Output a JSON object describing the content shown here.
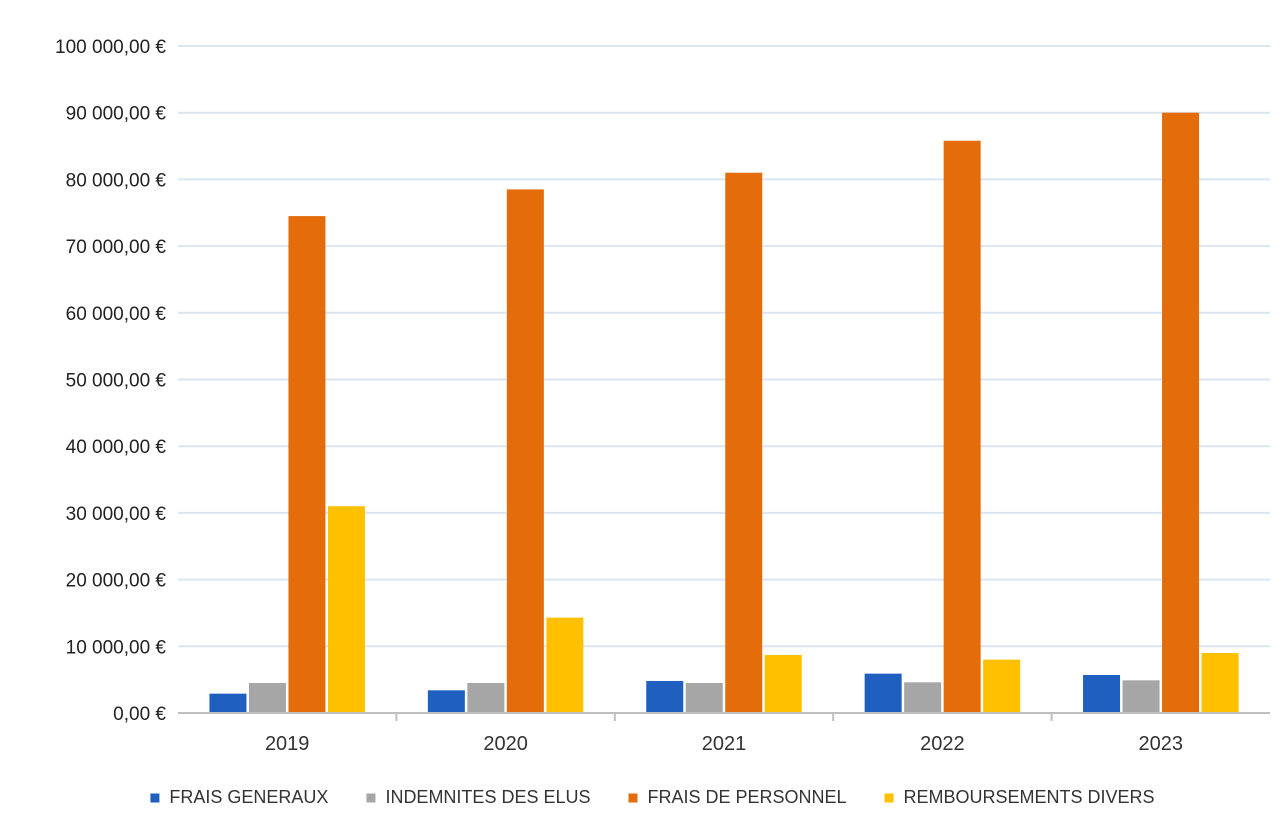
{
  "chart_data": {
    "type": "bar",
    "categories": [
      "2019",
      "2020",
      "2021",
      "2022",
      "2023"
    ],
    "series": [
      {
        "name": "FRAIS GENERAUX",
        "color": "#1f5fbf",
        "values": [
          2900,
          3400,
          4800,
          5900,
          5700
        ]
      },
      {
        "name": "INDEMNITES DES ELUS",
        "color": "#a6a6a6",
        "values": [
          4500,
          4500,
          4500,
          4600,
          4900
        ]
      },
      {
        "name": "FRAIS DE PERSONNEL",
        "color": "#e46c0a",
        "values": [
          74500,
          78500,
          81000,
          85800,
          90000
        ]
      },
      {
        "name": "REMBOURSEMENTS DIVERS",
        "color": "#ffc000",
        "values": [
          31000,
          14300,
          8700,
          8000,
          9000
        ]
      }
    ],
    "y_ticks": [
      "0,00 €",
      "10 000,00 €",
      "20 000,00 €",
      "30 000,00 €",
      "40 000,00 €",
      "50 000,00 €",
      "60 000,00 €",
      "70 000,00 €",
      "80 000,00 €",
      "90 000,00 €",
      "100 000,00 €"
    ],
    "ylim": [
      0,
      100000
    ],
    "grid": true,
    "legend_position": "bottom",
    "title": "",
    "xlabel": "",
    "ylabel": ""
  }
}
